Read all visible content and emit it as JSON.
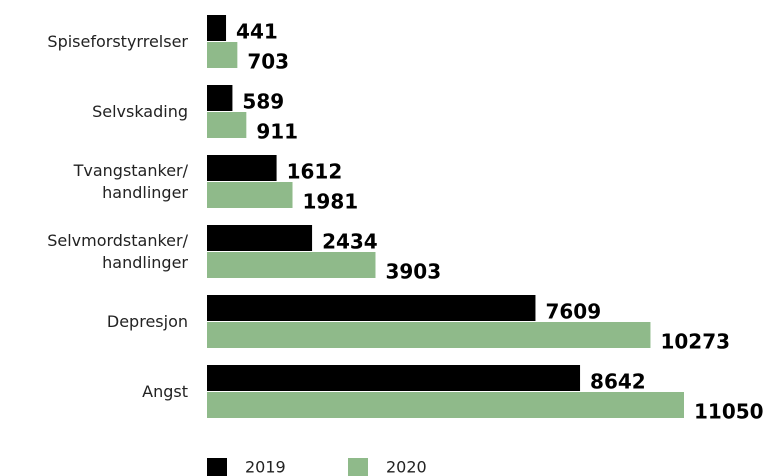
{
  "chart_data": {
    "type": "bar",
    "orientation": "horizontal",
    "categories": [
      "Spiseforstyrrelser",
      "Selvskading",
      "Tvangstanker/\nhandlinger",
      "Selvmordstanker/\nhandlinger",
      "Depresjon",
      "Angst"
    ],
    "series": [
      {
        "name": "2019",
        "color": "#000000",
        "values": [
          441,
          589,
          1612,
          2434,
          7609,
          8642
        ]
      },
      {
        "name": "2020",
        "color": "#8fba8a",
        "values": [
          703,
          911,
          1981,
          3903,
          10273,
          11050
        ]
      }
    ]
  }
}
